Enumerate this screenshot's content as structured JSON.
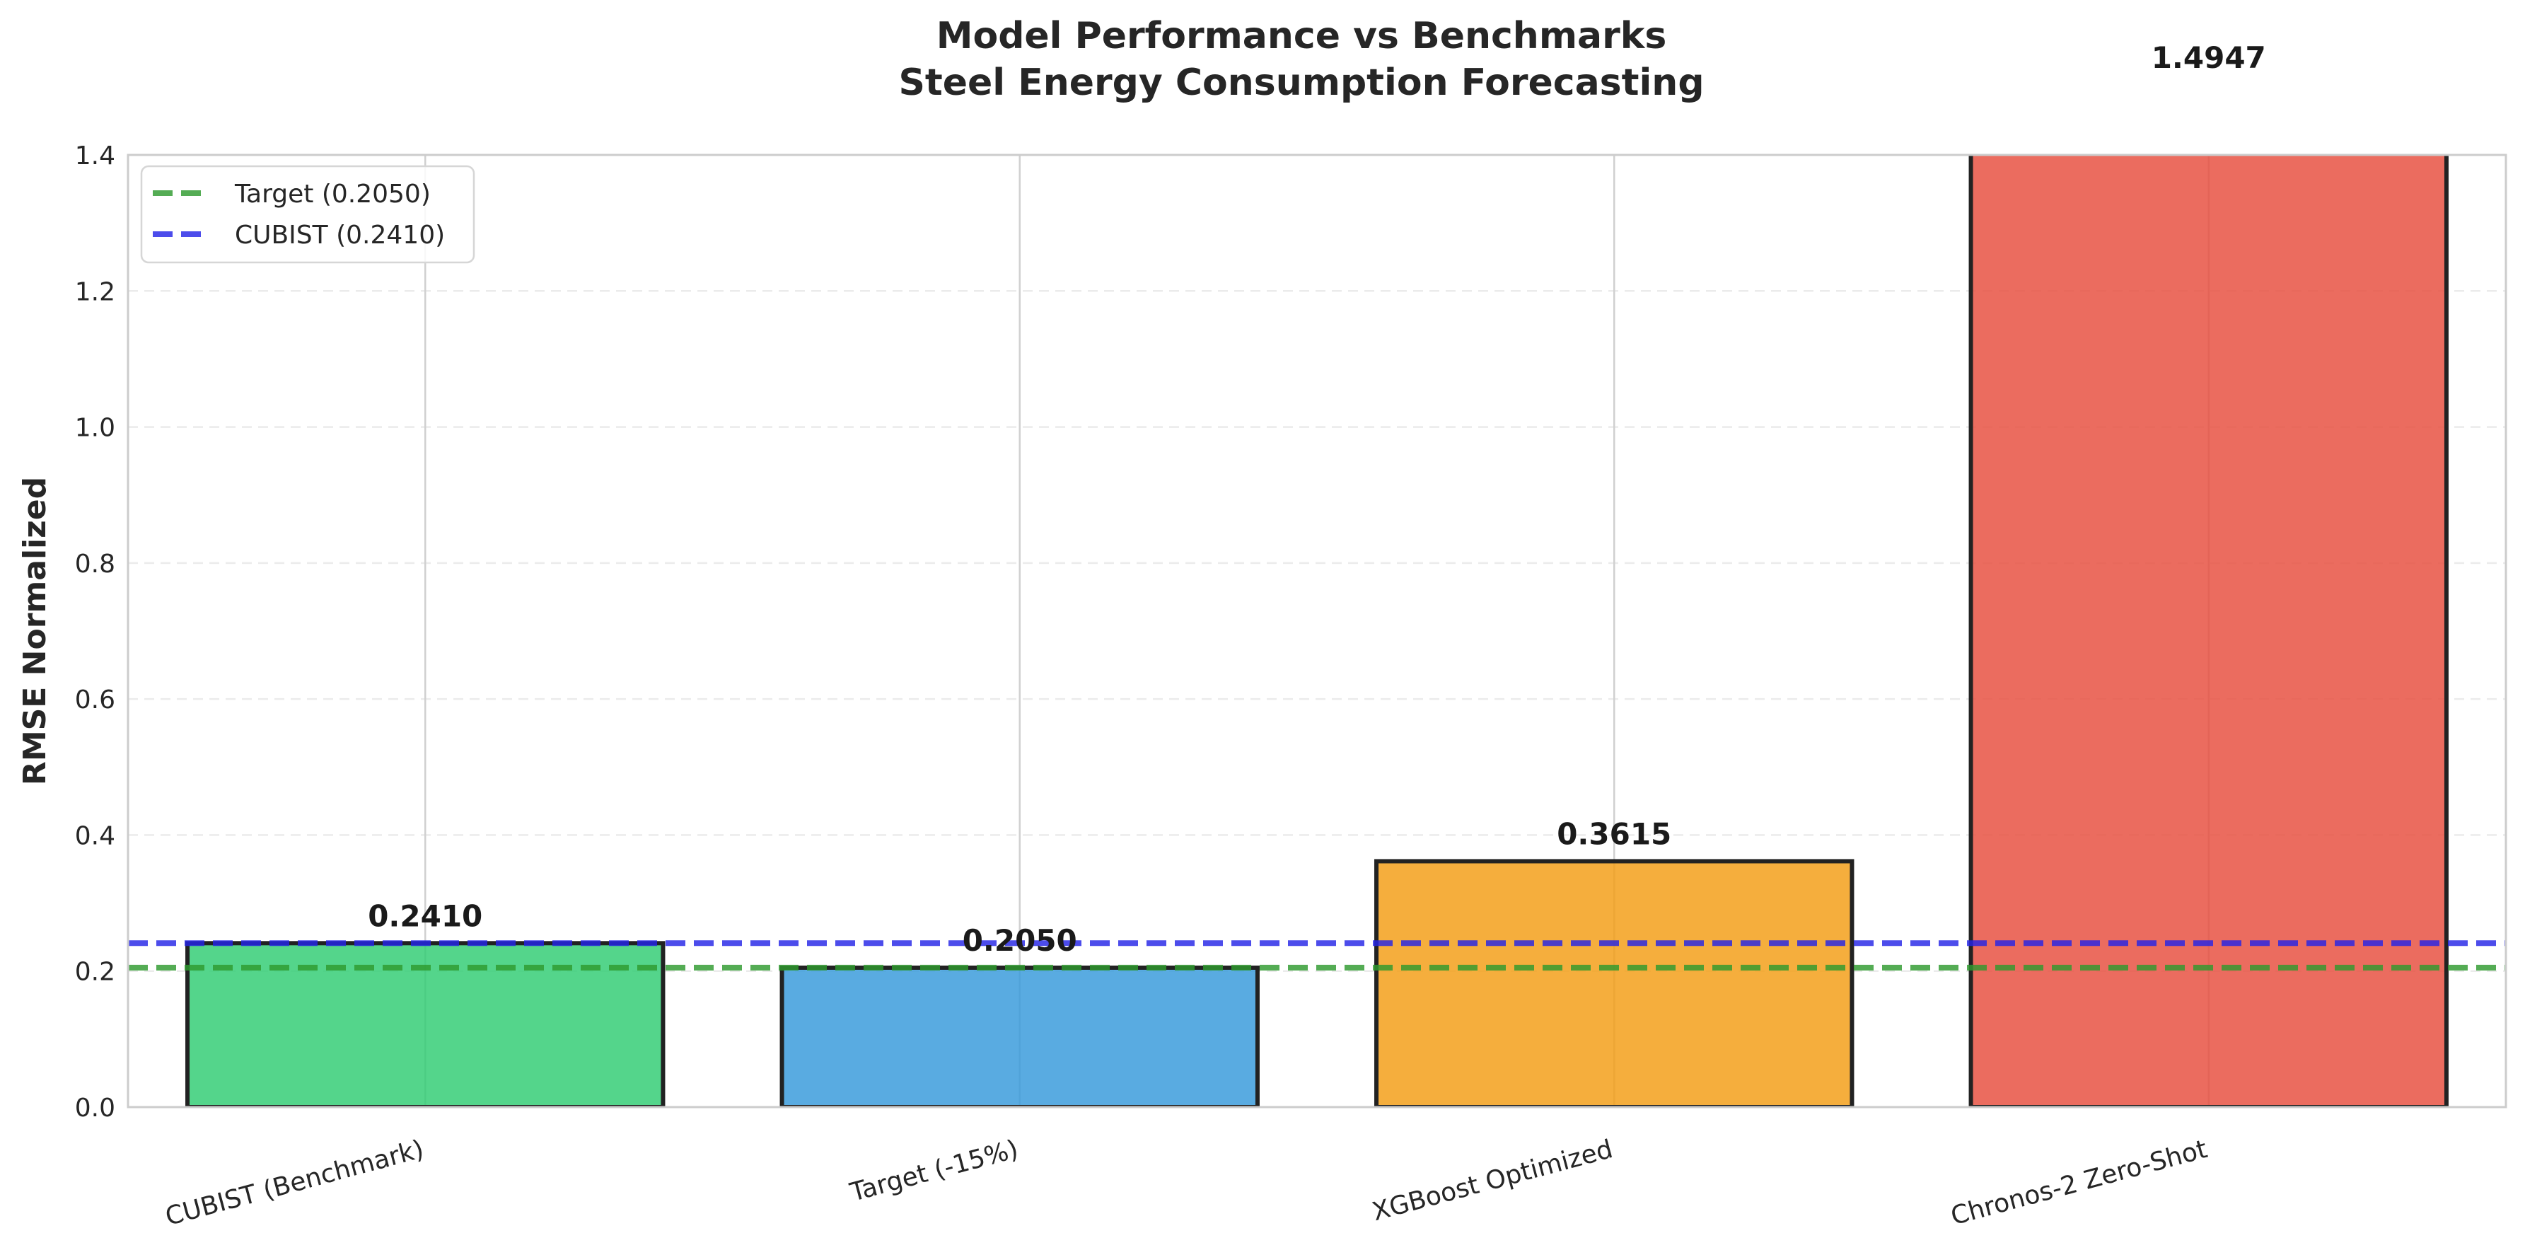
{
  "chart_data": {
    "type": "bar",
    "title_lines": [
      "Model Performance vs Benchmarks",
      "Steel Energy Consumption Forecasting"
    ],
    "xlabel": "",
    "ylabel": "RMSE Normalized",
    "categories": [
      "CUBIST (Benchmark)",
      "Target (-15%)",
      "XGBoost Optimized",
      "Chronos-2 Zero-Shot"
    ],
    "values": [
      0.241,
      0.205,
      0.3615,
      1.4947
    ],
    "value_labels": [
      "0.2410",
      "0.2050",
      "0.3615",
      "1.4947"
    ],
    "bar_colors": [
      "#2ecc71",
      "#3498db",
      "#f39c12",
      "#e74c3c"
    ],
    "bar_edge_color": "#222222",
    "ylim": [
      0,
      1.4
    ],
    "yticks": [
      0.0,
      0.2,
      0.4,
      0.6,
      0.8,
      1.0,
      1.2,
      1.4
    ],
    "ytick_labels": [
      "0.0",
      "0.2",
      "0.4",
      "0.6",
      "0.8",
      "1.0",
      "1.2",
      "1.4"
    ],
    "grid": true,
    "reference_lines": [
      {
        "label": "Target (0.2050)",
        "value": 0.205,
        "color": "#2e9a2e",
        "style": "dashed"
      },
      {
        "label": "CUBIST (0.2410)",
        "value": 0.241,
        "color": "#2525e6",
        "style": "dashed"
      }
    ],
    "legend_position": "top-left"
  }
}
